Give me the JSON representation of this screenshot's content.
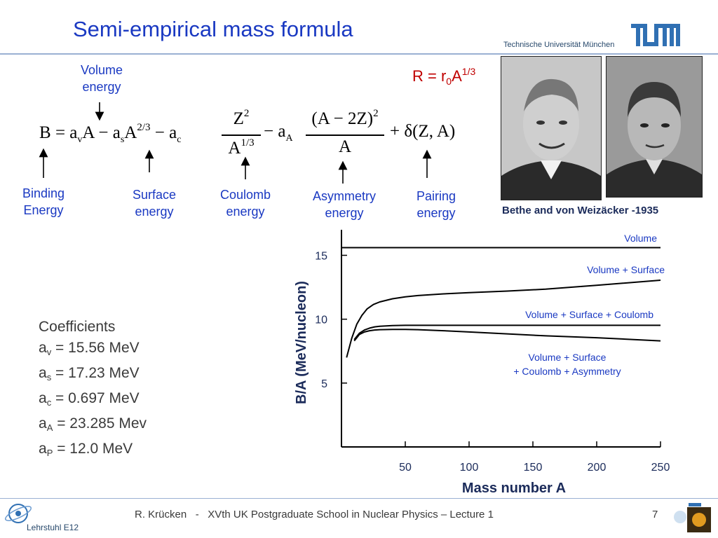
{
  "header": {
    "title": "Semi-empirical mass formula",
    "university": "Technische Universität München"
  },
  "formula": {
    "lhs": "B",
    "eq": "=",
    "minus": "−",
    "plus": "+",
    "av": "a",
    "av_sub": "v",
    "A1": "A",
    "as": "a",
    "as_sub": "s",
    "A2": "A",
    "A2_sup": "2/3",
    "ac": "a",
    "ac_sub": "c",
    "frac1_num": "Z",
    "frac1_num_sup": "2",
    "frac1_den": "A",
    "frac1_den_sup": "1/3",
    "aA": "a",
    "aA_sub": "A",
    "frac2_num": "(A − 2Z)",
    "frac2_num_sup": "2",
    "frac2_den": "A",
    "pairing": "δ(Z, A)"
  },
  "radius": {
    "r": "R = r",
    "sub": "0",
    "a": "A",
    "sup": "1/3"
  },
  "labels": {
    "volume": [
      "Volume",
      "energy"
    ],
    "binding": [
      "Binding",
      "Energy"
    ],
    "surface": [
      "Surface",
      "energy"
    ],
    "coulomb": [
      "Coulomb",
      "energy"
    ],
    "asymmetry": [
      "Asymmetry",
      "energy"
    ],
    "pairing": [
      "Pairing",
      "energy"
    ]
  },
  "photo_caption": "Bethe and von Weizäcker -1935",
  "coefficients": {
    "heading": "Coefficients",
    "rows": [
      {
        "a": "a",
        "sub": "v",
        "val": " = 15.56 MeV"
      },
      {
        "a": "a",
        "sub": "s",
        "val": " = 17.23 MeV"
      },
      {
        "a": "a",
        "sub": "c",
        "val": " = 0.697 MeV"
      },
      {
        "a": "a",
        "sub": "A",
        "val": " = 23.285 Mev"
      },
      {
        "a": "a",
        "sub": "P",
        "val": " = 12.0 MeV"
      }
    ]
  },
  "chart_data": {
    "type": "line",
    "xlabel": "Mass number A",
    "ylabel": "B/A (MeV/nucleon)",
    "xlim": [
      0,
      250
    ],
    "ylim": [
      0,
      17
    ],
    "xticks": [
      50,
      100,
      150,
      200,
      250
    ],
    "yticks": [
      5,
      10,
      15
    ],
    "grid": false,
    "series": [
      {
        "name": "Volume",
        "color": "#000000",
        "x": [
          0,
          250
        ],
        "y": [
          15.6,
          15.6
        ]
      },
      {
        "name": "Volume + Surface",
        "color": "#000000",
        "x": [
          4,
          8,
          12,
          16,
          20,
          25,
          30,
          40,
          50,
          60,
          80,
          100,
          130,
          160,
          200,
          250
        ],
        "y": [
          7.0,
          8.5,
          9.6,
          10.3,
          10.8,
          11.15,
          11.35,
          11.6,
          11.75,
          11.85,
          11.98,
          12.08,
          12.2,
          12.35,
          12.65,
          13.05
        ]
      },
      {
        "name": "Volume + Surface + Coulomb",
        "color": "#000000",
        "x": [
          10,
          14,
          18,
          22,
          26,
          30,
          40,
          50,
          60,
          80,
          100,
          130,
          160,
          200,
          250
        ],
        "y": [
          8.4,
          8.9,
          9.15,
          9.3,
          9.4,
          9.45,
          9.5,
          9.52,
          9.52,
          9.52,
          9.52,
          9.52,
          9.52,
          9.52,
          9.52
        ]
      },
      {
        "name": "Volume + Surface + Coulomb + Asymmetry",
        "color": "#000000",
        "x": [
          10,
          14,
          18,
          22,
          26,
          30,
          40,
          50,
          60,
          80,
          100,
          130,
          160,
          200,
          250
        ],
        "y": [
          8.3,
          8.8,
          9.0,
          9.1,
          9.15,
          9.18,
          9.2,
          9.2,
          9.18,
          9.1,
          9.0,
          8.85,
          8.7,
          8.55,
          8.3
        ]
      }
    ],
    "annotations": {
      "volume": "Volume",
      "vs": "Volume + Surface",
      "vsc": "Volume + Surface + Coulomb",
      "vsca1": "Volume + Surface",
      "vsca2": "+ Coulomb + Asymmetry"
    },
    "annotation_color": "#1a39c2"
  },
  "footer": {
    "text": "R. Krücken   -   XVth UK Postgraduate School in Nuclear Physics – Lecture 1",
    "page": "7",
    "dept": "Lehrstuhl E12"
  }
}
